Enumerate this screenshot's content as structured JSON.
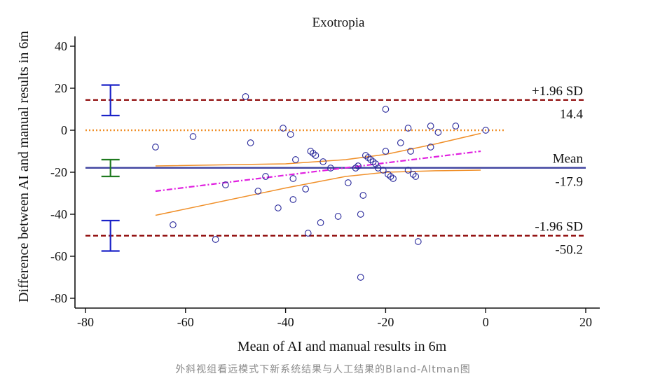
{
  "chart_data": {
    "type": "scatter",
    "title": "Exotropia",
    "xlabel": "Mean of  AI and manual results in 6m",
    "ylabel": "Difference between AI and manual results in 6m",
    "xlim": [
      -80,
      20
    ],
    "ylim": [
      -85,
      45
    ],
    "xticks": [
      -80,
      -60,
      -40,
      -20,
      0,
      20
    ],
    "yticks": [
      -80,
      -60,
      -40,
      -20,
      0,
      20,
      40
    ],
    "lines": {
      "upper_loa": {
        "label": "+1.96 SD",
        "value": 14.4,
        "value_label": "14.4",
        "color": "#8b0000"
      },
      "mean": {
        "label": "Mean",
        "value": -17.9,
        "value_label": "-17.9",
        "color": "#3b3f9e"
      },
      "lower_loa": {
        "label": "-1.96 SD",
        "value": -50.2,
        "value_label": "-50.2",
        "color": "#8b0000"
      },
      "zero": {
        "value": 0,
        "color": "#f0902a"
      }
    },
    "regression": {
      "x": [
        -66,
        -1
      ],
      "y": [
        -29,
        -10
      ],
      "color": "#e020e0"
    },
    "confidence_band": {
      "upper": {
        "x": [
          -66,
          -40,
          -28,
          -20,
          -10,
          -1
        ],
        "y": [
          -17,
          -16,
          -14,
          -11.5,
          -6.5,
          -1.5
        ]
      },
      "lower": {
        "x": [
          -66,
          -40,
          -28,
          -20,
          -10,
          -1
        ],
        "y": [
          -40.5,
          -27.5,
          -22,
          -20,
          -19.3,
          -19
        ]
      },
      "color": "#f0902a"
    },
    "ci_bars": [
      {
        "name": "upper LoA CI",
        "x": -75,
        "low": 7,
        "high": 21.5,
        "color": "#1a22c8"
      },
      {
        "name": "mean CI",
        "x": -75,
        "low": -22,
        "high": -14,
        "color": "#1f7a1f"
      },
      {
        "name": "lower LoA CI",
        "x": -75,
        "low": -57.5,
        "high": -43,
        "color": "#1a22c8"
      }
    ],
    "points": [
      [
        -66,
        -8
      ],
      [
        -62.5,
        -45
      ],
      [
        -58.5,
        -3
      ],
      [
        -54,
        -52
      ],
      [
        -52,
        -26
      ],
      [
        -48,
        16
      ],
      [
        -47,
        -6
      ],
      [
        -45.5,
        -29
      ],
      [
        -44,
        -22
      ],
      [
        -41.5,
        -37
      ],
      [
        -40.5,
        1
      ],
      [
        -39,
        -2
      ],
      [
        -38.5,
        -23
      ],
      [
        -38.5,
        -33
      ],
      [
        -38,
        -14
      ],
      [
        -36,
        -28
      ],
      [
        -35.5,
        -49
      ],
      [
        -35,
        -10
      ],
      [
        -34.5,
        -11
      ],
      [
        -34,
        -12
      ],
      [
        -33,
        -44
      ],
      [
        -32.5,
        -15
      ],
      [
        -31,
        -18
      ],
      [
        -29.5,
        -41
      ],
      [
        -27.5,
        -25
      ],
      [
        -26,
        -18
      ],
      [
        -25.5,
        -17
      ],
      [
        -25,
        -40
      ],
      [
        -25,
        -70
      ],
      [
        -24.5,
        -31
      ],
      [
        -24,
        -12
      ],
      [
        -23.5,
        -13
      ],
      [
        -23,
        -14
      ],
      [
        -22.5,
        -15
      ],
      [
        -22,
        -16
      ],
      [
        -21.5,
        -18
      ],
      [
        -20.5,
        -19
      ],
      [
        -20,
        10
      ],
      [
        -20,
        -10
      ],
      [
        -19.5,
        -21
      ],
      [
        -19,
        -22
      ],
      [
        -18.5,
        -23
      ],
      [
        -17,
        -6
      ],
      [
        -15.5,
        1
      ],
      [
        -15.5,
        -19
      ],
      [
        -15,
        -10
      ],
      [
        -14.5,
        -21
      ],
      [
        -14,
        -22
      ],
      [
        -13.5,
        -53
      ],
      [
        -11,
        2
      ],
      [
        -11,
        -8
      ],
      [
        -9.5,
        -1
      ],
      [
        -6,
        2
      ],
      [
        0,
        0
      ]
    ]
  },
  "caption": "外斜视组看远模式下新系统结果与人工结果的Bland-Altman图"
}
